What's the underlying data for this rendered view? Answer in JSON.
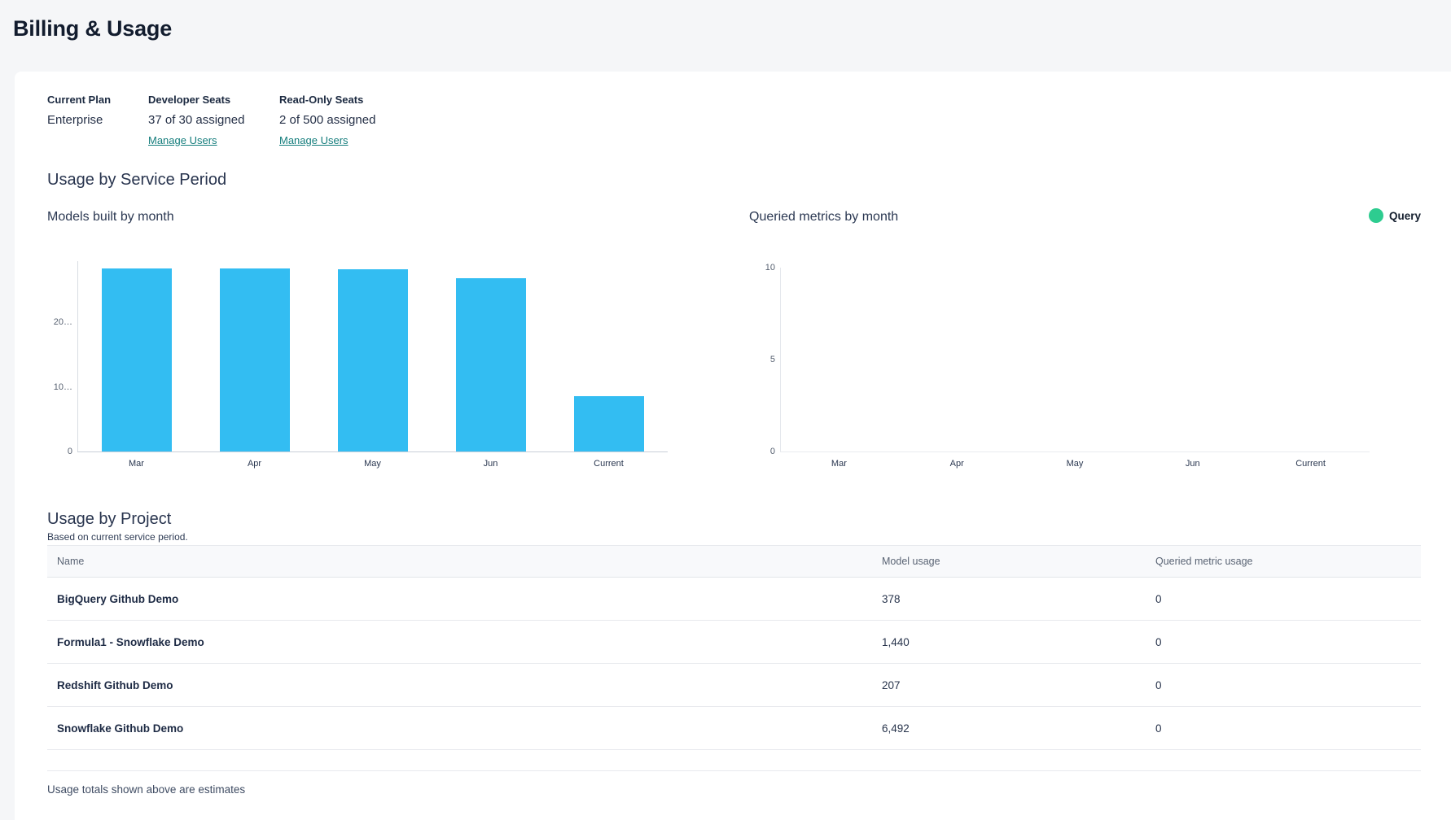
{
  "page": {
    "title": "Billing & Usage"
  },
  "plan": {
    "current_plan_label": "Current Plan",
    "current_plan_value": "Enterprise",
    "developer_seats_label": "Developer Seats",
    "developer_seats_value": "37 of 30 assigned",
    "developer_manage_link": "Manage Users",
    "readonly_seats_label": "Read-Only Seats",
    "readonly_seats_value": "2 of 500 assigned",
    "readonly_manage_link": "Manage Users"
  },
  "usage_section": {
    "title": "Usage by Service Period"
  },
  "chart_data": [
    {
      "type": "bar",
      "title": "Models built by month",
      "categories": [
        "Mar",
        "Apr",
        "May",
        "Jun",
        "Current"
      ],
      "values": [
        28400,
        28350,
        28250,
        26900,
        8517
      ],
      "xlabel": "",
      "ylabel": "",
      "ylim": [
        0,
        29500
      ],
      "yticks": [
        {
          "value": 0,
          "label": "0"
        },
        {
          "value": 10000,
          "label": "10…"
        },
        {
          "value": 20000,
          "label": "20…"
        }
      ],
      "grid": false,
      "series_color": "#33bdf2"
    },
    {
      "type": "bar",
      "title": "Queried metrics by month",
      "categories": [
        "Mar",
        "Apr",
        "May",
        "Jun",
        "Current"
      ],
      "values": [
        0,
        0,
        0,
        0,
        0
      ],
      "xlabel": "",
      "ylabel": "",
      "ylim": [
        0,
        10
      ],
      "yticks": [
        {
          "value": 0,
          "label": "0"
        },
        {
          "value": 5,
          "label": "5"
        },
        {
          "value": 10,
          "label": "10"
        }
      ],
      "grid": false,
      "legend_position": "top-right",
      "legend": [
        {
          "label": "Query",
          "color": "#2ecc90"
        }
      ],
      "series_color": "#2ecc90"
    }
  ],
  "project_section": {
    "title": "Usage by Project",
    "subtitle": "Based on current service period.",
    "table": {
      "columns": [
        "Name",
        "Model usage",
        "Queried metric usage"
      ],
      "rows": [
        {
          "name": "BigQuery Github Demo",
          "model_usage": "378",
          "queried_metric_usage": "0"
        },
        {
          "name": "Formula1 - Snowflake Demo",
          "model_usage": "1,440",
          "queried_metric_usage": "0"
        },
        {
          "name": "Redshift Github Demo",
          "model_usage": "207",
          "queried_metric_usage": "0"
        },
        {
          "name": "Snowflake Github Demo",
          "model_usage": "6,492",
          "queried_metric_usage": "0"
        }
      ]
    },
    "footnote": "Usage totals shown above are estimates"
  },
  "colors": {
    "bar_blue": "#33bdf2",
    "legend_green": "#2ecc90",
    "link_teal": "#147d7c",
    "page_bg": "#f5f6f8",
    "card_bg": "#ffffff"
  }
}
